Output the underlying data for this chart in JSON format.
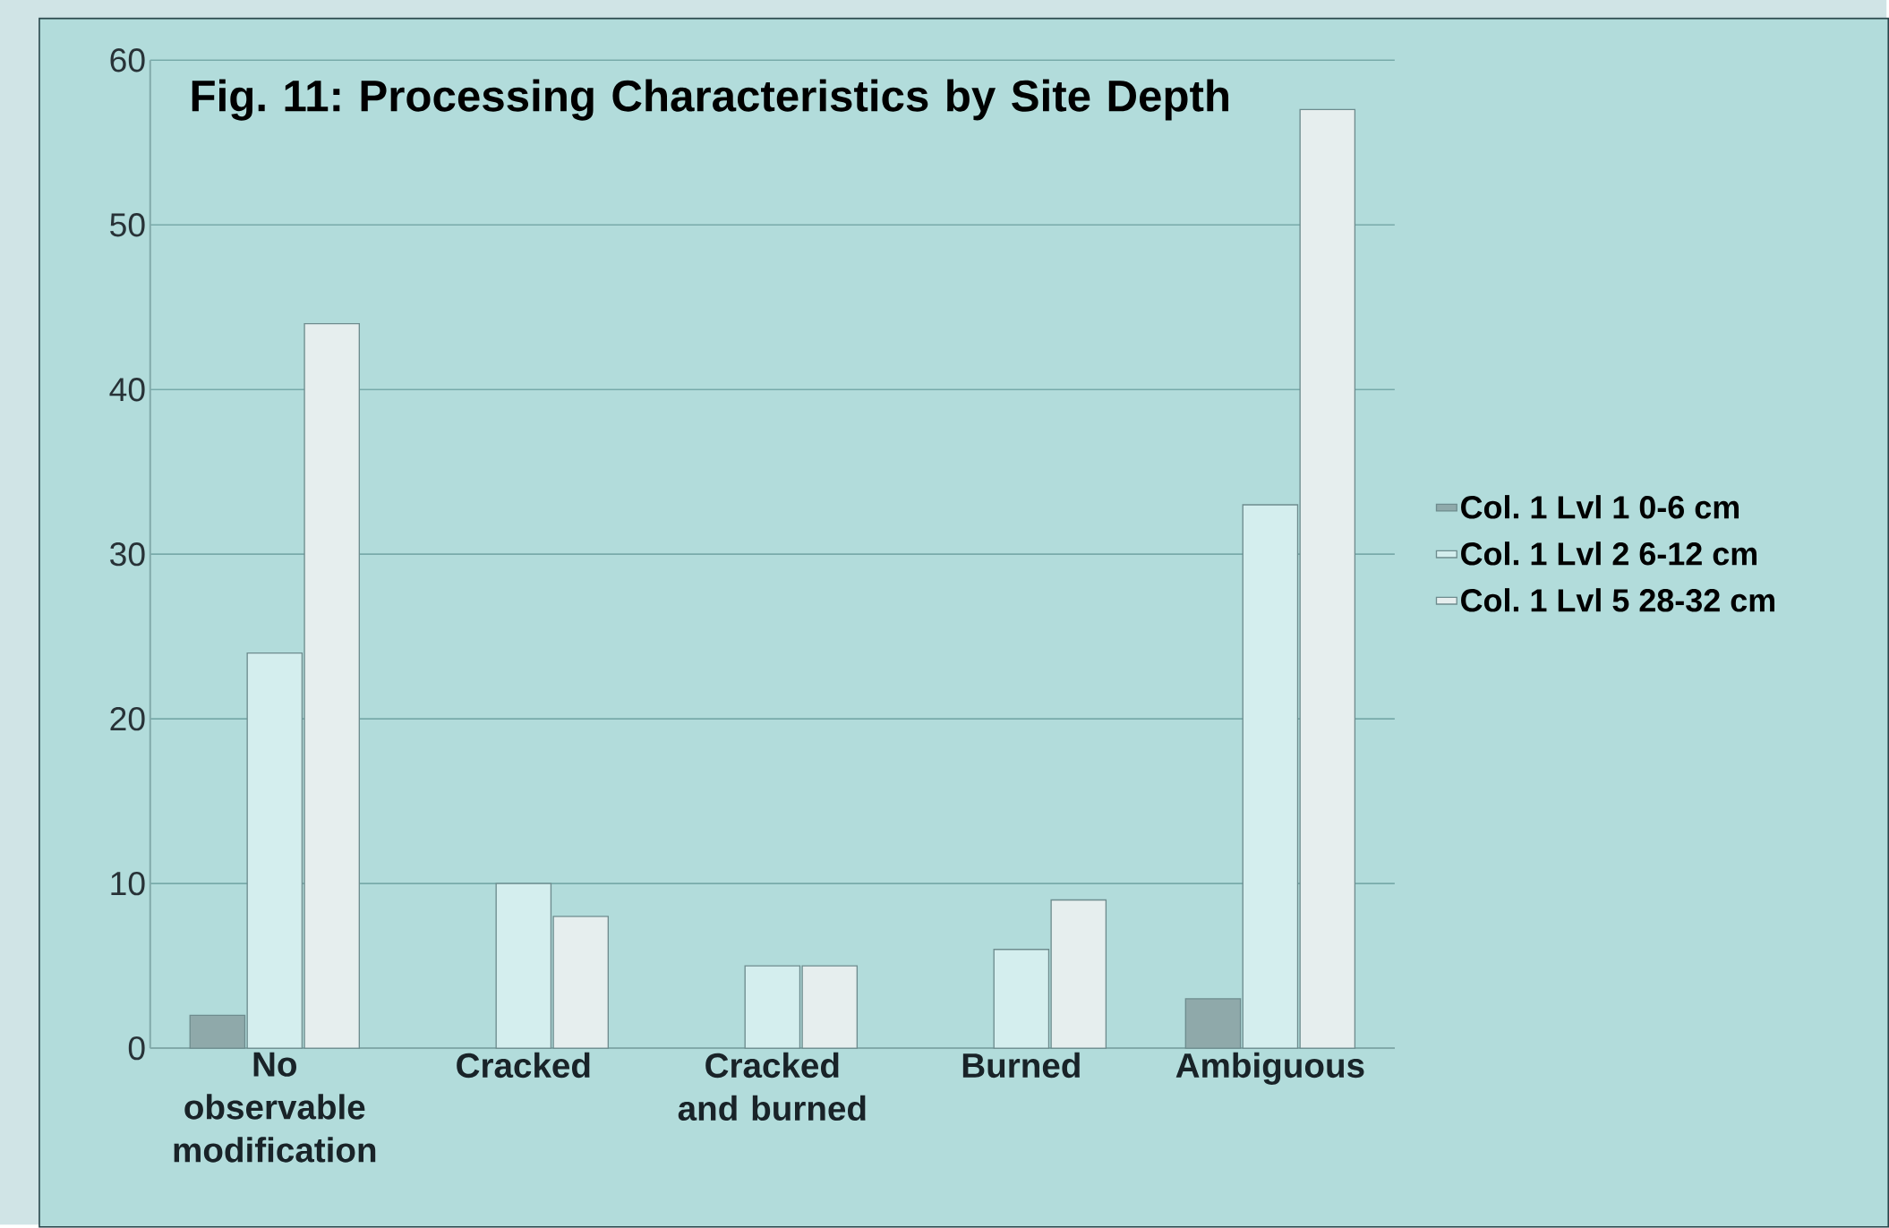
{
  "chart_data": {
    "type": "bar",
    "title": "Fig. 11: Processing Characteristics by Site Depth",
    "categories": [
      "No observable modification",
      "Cracked",
      "Cracked and burned",
      "Burned",
      "Ambiguous"
    ],
    "series": [
      {
        "name": "Col. 1 Lvl 1 0-6 cm",
        "color": "#8fa9aa",
        "values": [
          2,
          null,
          null,
          null,
          3
        ]
      },
      {
        "name": "Col. 1 Lvl 2 6-12 cm",
        "color": "#d4eeee",
        "values": [
          24,
          10,
          5,
          6,
          33
        ]
      },
      {
        "name": "Col. 1 Lvl 5 28-32 cm",
        "color": "#e6eeee",
        "values": [
          44,
          8,
          5,
          9,
          57
        ]
      }
    ],
    "ylim": [
      0,
      60
    ],
    "yticks": [
      0,
      10,
      20,
      30,
      40,
      50,
      60
    ],
    "grid": "y",
    "legend": "right"
  }
}
